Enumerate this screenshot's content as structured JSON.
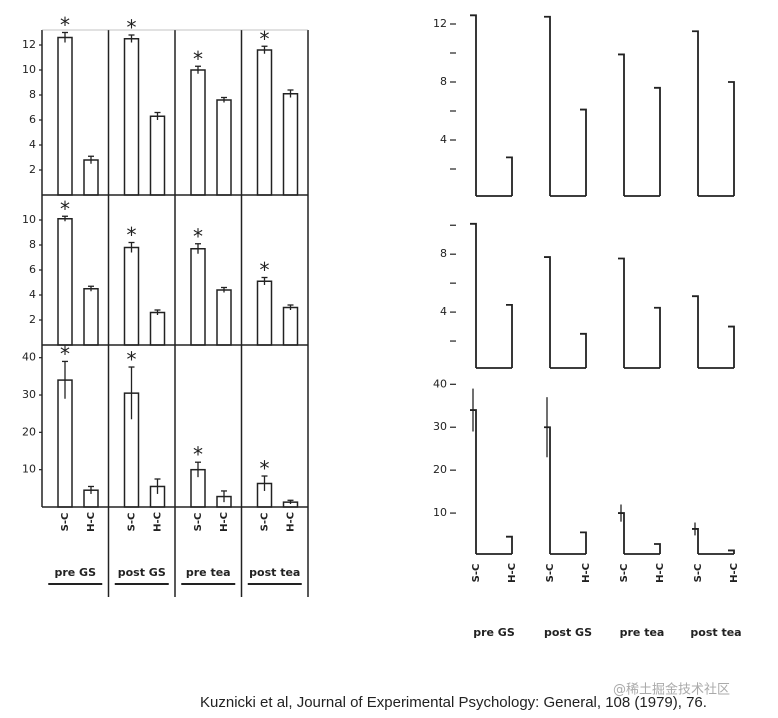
{
  "chart_data": [
    {
      "type": "framed-bar",
      "groups": [
        "pre GS",
        "post GS",
        "pre tea",
        "post tea"
      ],
      "categories": [
        "S-C",
        "H-C"
      ],
      "sig_marker": "*",
      "rows": [
        {
          "ylim": [
            0,
            13.2
          ],
          "yticks": [
            2,
            4,
            6,
            8,
            10,
            12
          ],
          "values": [
            [
              12.6,
              2.8
            ],
            [
              12.5,
              6.3
            ],
            [
              10,
              7.6
            ],
            [
              11.6,
              8.1
            ]
          ],
          "errors": [
            [
              0.4,
              0.3
            ],
            [
              0.3,
              0.3
            ],
            [
              0.3,
              0.2
            ],
            [
              0.3,
              0.3
            ]
          ],
          "significant": [
            true,
            true,
            true,
            true
          ]
        },
        {
          "ylim": [
            0,
            12
          ],
          "yticks": [
            2,
            4,
            6,
            8,
            10
          ],
          "values": [
            [
              10.1,
              4.5
            ],
            [
              7.8,
              2.6
            ],
            [
              7.7,
              4.4
            ],
            [
              5.1,
              3.0
            ]
          ],
          "errors": [
            [
              0.2,
              0.2
            ],
            [
              0.4,
              0.2
            ],
            [
              0.4,
              0.2
            ],
            [
              0.3,
              0.2
            ]
          ],
          "significant": [
            true,
            true,
            true,
            true
          ]
        },
        {
          "ylim": [
            0,
            43.4
          ],
          "yticks": [
            10,
            20,
            30,
            40
          ],
          "values": [
            [
              34,
              4.5
            ],
            [
              30.5,
              5.5
            ],
            [
              10,
              2.8
            ],
            [
              6.3,
              1.3
            ]
          ],
          "errors": [
            [
              5,
              1
            ],
            [
              7,
              2
            ],
            [
              2,
              1.5
            ],
            [
              2,
              0.5
            ]
          ],
          "significant": [
            true,
            true,
            true,
            true
          ]
        }
      ]
    },
    {
      "type": "open-line-bar",
      "groups": [
        "pre GS",
        "post GS",
        "pre tea",
        "post tea"
      ],
      "categories": [
        "S-C",
        "H-C"
      ],
      "rows": [
        {
          "ylim": [
            0,
            13
          ],
          "yticks": [
            4,
            8,
            12
          ],
          "minor_yticks": [
            2,
            6,
            10
          ],
          "values": [
            [
              12.6,
              2.8
            ],
            [
              12.5,
              6.1
            ],
            [
              9.9,
              7.6
            ],
            [
              11.5,
              8.0
            ]
          ]
        },
        {
          "ylim": [
            0,
            10.5
          ],
          "yticks": [
            4,
            8
          ],
          "minor_yticks": [
            2,
            6,
            10
          ],
          "values": [
            [
              10.1,
              4.5
            ],
            [
              7.8,
              2.5
            ],
            [
              7.7,
              4.3
            ],
            [
              5.1,
              3.0
            ]
          ]
        },
        {
          "ylim": [
            0,
            41
          ],
          "yticks": [
            10,
            20,
            30,
            40
          ],
          "values": [
            [
              34,
              4.5
            ],
            [
              30,
              5.5
            ],
            [
              10,
              2.8
            ],
            [
              6.3,
              1.3
            ]
          ],
          "errors": [
            [
              5,
              null
            ],
            [
              7,
              null
            ],
            [
              2,
              null
            ],
            [
              1.5,
              null
            ]
          ]
        }
      ]
    }
  ],
  "caption": "Kuznicki et al, Journal of Experimental Psychology: General, 108 (1979), 76.",
  "watermark": "@稀土掘金技术社区"
}
